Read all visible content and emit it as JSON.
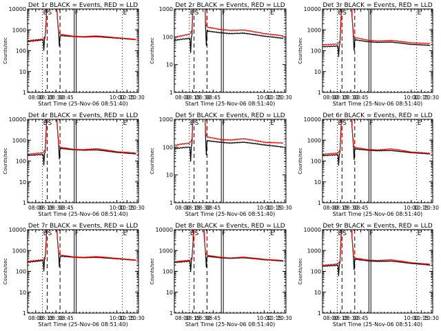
{
  "chart_data": [
    {
      "type": "line",
      "title": "Det 1r BLACK = Events, RED = LLD",
      "xlabel": "Start Time (25-Nov-06 08:51:40)",
      "ylabel": "Counts/sec",
      "yscale": "log",
      "ylim": [
        1,
        10000
      ],
      "yticks": [
        "1",
        "10",
        "100",
        "1000",
        "10000"
      ],
      "xticks": [
        "08:00",
        "08:15",
        "08:30",
        "08:45",
        "10:00",
        "10:15",
        "10:30"
      ],
      "series": [
        {
          "name": "Events",
          "color": "#000000",
          "base": [
            270,
            300,
            330
          ],
          "post": [
            530,
            480,
            450,
            470,
            400,
            340
          ]
        },
        {
          "name": "LLD",
          "color": "#ff0000",
          "base": [
            300,
            330,
            360
          ],
          "post": [
            600,
            500,
            470,
            510,
            420,
            350
          ]
        }
      ]
    },
    {
      "type": "line",
      "title": "Det 2r BLACK = Events, RED = LLD",
      "xlabel": "Start Time (25-Nov-06 08:51:40)",
      "ylabel": "Counts/sec",
      "yscale": "log",
      "ylim": [
        1,
        1000
      ],
      "yticks": [
        "1",
        "10",
        "100",
        "1000"
      ],
      "xticks": [
        "08:00",
        "08:15",
        "08:30",
        "08:45",
        "10:00",
        "10:15",
        "10:30"
      ],
      "series": [
        {
          "name": "Events",
          "color": "#000000",
          "base": [
            75,
            82,
            88
          ],
          "post": [
            160,
            140,
            130,
            135,
            105,
            88
          ]
        },
        {
          "name": "LLD",
          "color": "#ff0000",
          "base": [
            95,
            110,
            125
          ],
          "post": [
            220,
            185,
            170,
            175,
            130,
            108
          ]
        }
      ]
    },
    {
      "type": "line",
      "title": "Det 3r BLACK = Events, RED = LLD",
      "xlabel": "Start Time (25-Nov-06 08:51:40)",
      "ylabel": "Counts/sec",
      "yscale": "log",
      "ylim": [
        1,
        10000
      ],
      "yticks": [
        "1",
        "10",
        "100",
        "1000",
        "10000"
      ],
      "xticks": [
        "08:00",
        "08:15",
        "08:30",
        "08:45",
        "10:00",
        "10:15",
        "10:30"
      ],
      "series": [
        {
          "name": "Events",
          "color": "#000000",
          "base": [
            155,
            160,
            165
          ],
          "post": [
            330,
            270,
            250,
            260,
            200,
            180
          ]
        },
        {
          "name": "LLD",
          "color": "#ff0000",
          "base": [
            190,
            200,
            210
          ],
          "post": [
            420,
            320,
            290,
            310,
            240,
            220
          ]
        }
      ]
    },
    {
      "type": "line",
      "title": "Det 4r BLACK = Events, RED = LLD",
      "xlabel": "Start Time (25-Nov-06 08:51:40)",
      "ylabel": "Counts/sec",
      "yscale": "log",
      "ylim": [
        1,
        10000
      ],
      "yticks": [
        "1",
        "10",
        "100",
        "1000",
        "10000"
      ],
      "xticks": [
        "08:00",
        "08:15",
        "08:30",
        "08:45",
        "10:00",
        "10:15",
        "10:30"
      ],
      "series": [
        {
          "name": "Events",
          "color": "#000000",
          "base": [
            185,
            195,
            205
          ],
          "post": [
            400,
            350,
            330,
            340,
            260,
            220
          ]
        },
        {
          "name": "LLD",
          "color": "#ff0000",
          "base": [
            210,
            230,
            250
          ],
          "post": [
            450,
            370,
            350,
            390,
            280,
            240
          ]
        }
      ]
    },
    {
      "type": "line",
      "title": "Det 5r BLACK = Events, RED = LLD",
      "xlabel": "Start Time (25-Nov-06 08:51:40)",
      "ylabel": "Counts/sec",
      "yscale": "log",
      "ylim": [
        1,
        1000
      ],
      "yticks": [
        "1",
        "10",
        "100",
        "1000"
      ],
      "xticks": [
        "08:00",
        "08:15",
        "08:30",
        "08:45",
        "10:00",
        "10:15",
        "10:30"
      ],
      "series": [
        {
          "name": "Events",
          "color": "#000000",
          "base": [
            88,
            95,
            100
          ],
          "post": [
            170,
            150,
            140,
            150,
            120,
            100
          ]
        },
        {
          "name": "LLD",
          "color": "#ff0000",
          "base": [
            115,
            130,
            140
          ],
          "post": [
            230,
            190,
            180,
            200,
            150,
            140
          ]
        }
      ]
    },
    {
      "type": "line",
      "title": "Det 6r BLACK = Events, RED = LLD",
      "xlabel": "Start Time (25-Nov-06 08:51:40)",
      "ylabel": "Counts/sec",
      "yscale": "log",
      "ylim": [
        1,
        10000
      ],
      "yticks": [
        "1",
        "10",
        "100",
        "1000",
        "10000"
      ],
      "xticks": [
        "08:00",
        "08:15",
        "08:30",
        "08:45",
        "10:00",
        "10:15",
        "10:30"
      ],
      "series": [
        {
          "name": "Events",
          "color": "#000000",
          "base": [
            180,
            190,
            200
          ],
          "post": [
            380,
            330,
            310,
            320,
            250,
            220
          ]
        },
        {
          "name": "LLD",
          "color": "#ff0000",
          "base": [
            210,
            225,
            240
          ],
          "post": [
            440,
            360,
            340,
            380,
            270,
            235
          ]
        }
      ]
    },
    {
      "type": "line",
      "title": "Det 7r BLACK = Events, RED = LLD",
      "xlabel": "Start Time (25-Nov-06 08:51:40)",
      "ylabel": "Counts/sec",
      "yscale": "log",
      "ylim": [
        1,
        10000
      ],
      "yticks": [
        "1",
        "10",
        "100",
        "1000",
        "10000"
      ],
      "xticks": [
        "08:00",
        "08:15",
        "08:30",
        "08:45",
        "10:00",
        "10:15",
        "10:30"
      ],
      "series": [
        {
          "name": "Events",
          "color": "#000000",
          "base": [
            270,
            300,
            330
          ],
          "post": [
            530,
            480,
            450,
            470,
            400,
            340
          ]
        },
        {
          "name": "LLD",
          "color": "#ff0000",
          "base": [
            300,
            330,
            360
          ],
          "post": [
            600,
            500,
            470,
            510,
            420,
            350
          ]
        }
      ]
    },
    {
      "type": "line",
      "title": "Det 8r BLACK = Events, RED = LLD",
      "xlabel": "Start Time (25-Nov-06 08:51:40)",
      "ylabel": "Counts/sec",
      "yscale": "log",
      "ylim": [
        1,
        10000
      ],
      "yticks": [
        "1",
        "10",
        "100",
        "1000",
        "10000"
      ],
      "xticks": [
        "08:00",
        "08:15",
        "08:30",
        "08:45",
        "10:00",
        "10:15",
        "10:30"
      ],
      "series": [
        {
          "name": "Events",
          "color": "#000000",
          "base": [
            265,
            285,
            310
          ],
          "post": [
            520,
            450,
            420,
            450,
            360,
            310
          ]
        },
        {
          "name": "LLD",
          "color": "#ff0000",
          "base": [
            290,
            315,
            340
          ],
          "post": [
            580,
            480,
            440,
            480,
            380,
            330
          ]
        }
      ]
    },
    {
      "type": "line",
      "title": "Det 9r BLACK = Events, RED = LLD",
      "xlabel": "Start Time (25-Nov-06 08:51:40)",
      "ylabel": "Counts/sec",
      "yscale": "log",
      "ylim": [
        1,
        10000
      ],
      "yticks": [
        "1",
        "10",
        "100",
        "1000",
        "10000"
      ],
      "xticks": [
        "08:00",
        "08:15",
        "08:30",
        "08:45",
        "10:00",
        "10:15",
        "10:30"
      ],
      "series": [
        {
          "name": "Events",
          "color": "#000000",
          "base": [
            175,
            185,
            195
          ],
          "post": [
            380,
            320,
            300,
            310,
            240,
            200
          ]
        },
        {
          "name": "LLD",
          "color": "#ff0000",
          "base": [
            195,
            210,
            225
          ],
          "post": [
            430,
            350,
            330,
            360,
            260,
            220
          ]
        }
      ]
    }
  ],
  "markers": {
    "top_labels": [
      "E",
      "S",
      "F",
      "E"
    ]
  }
}
